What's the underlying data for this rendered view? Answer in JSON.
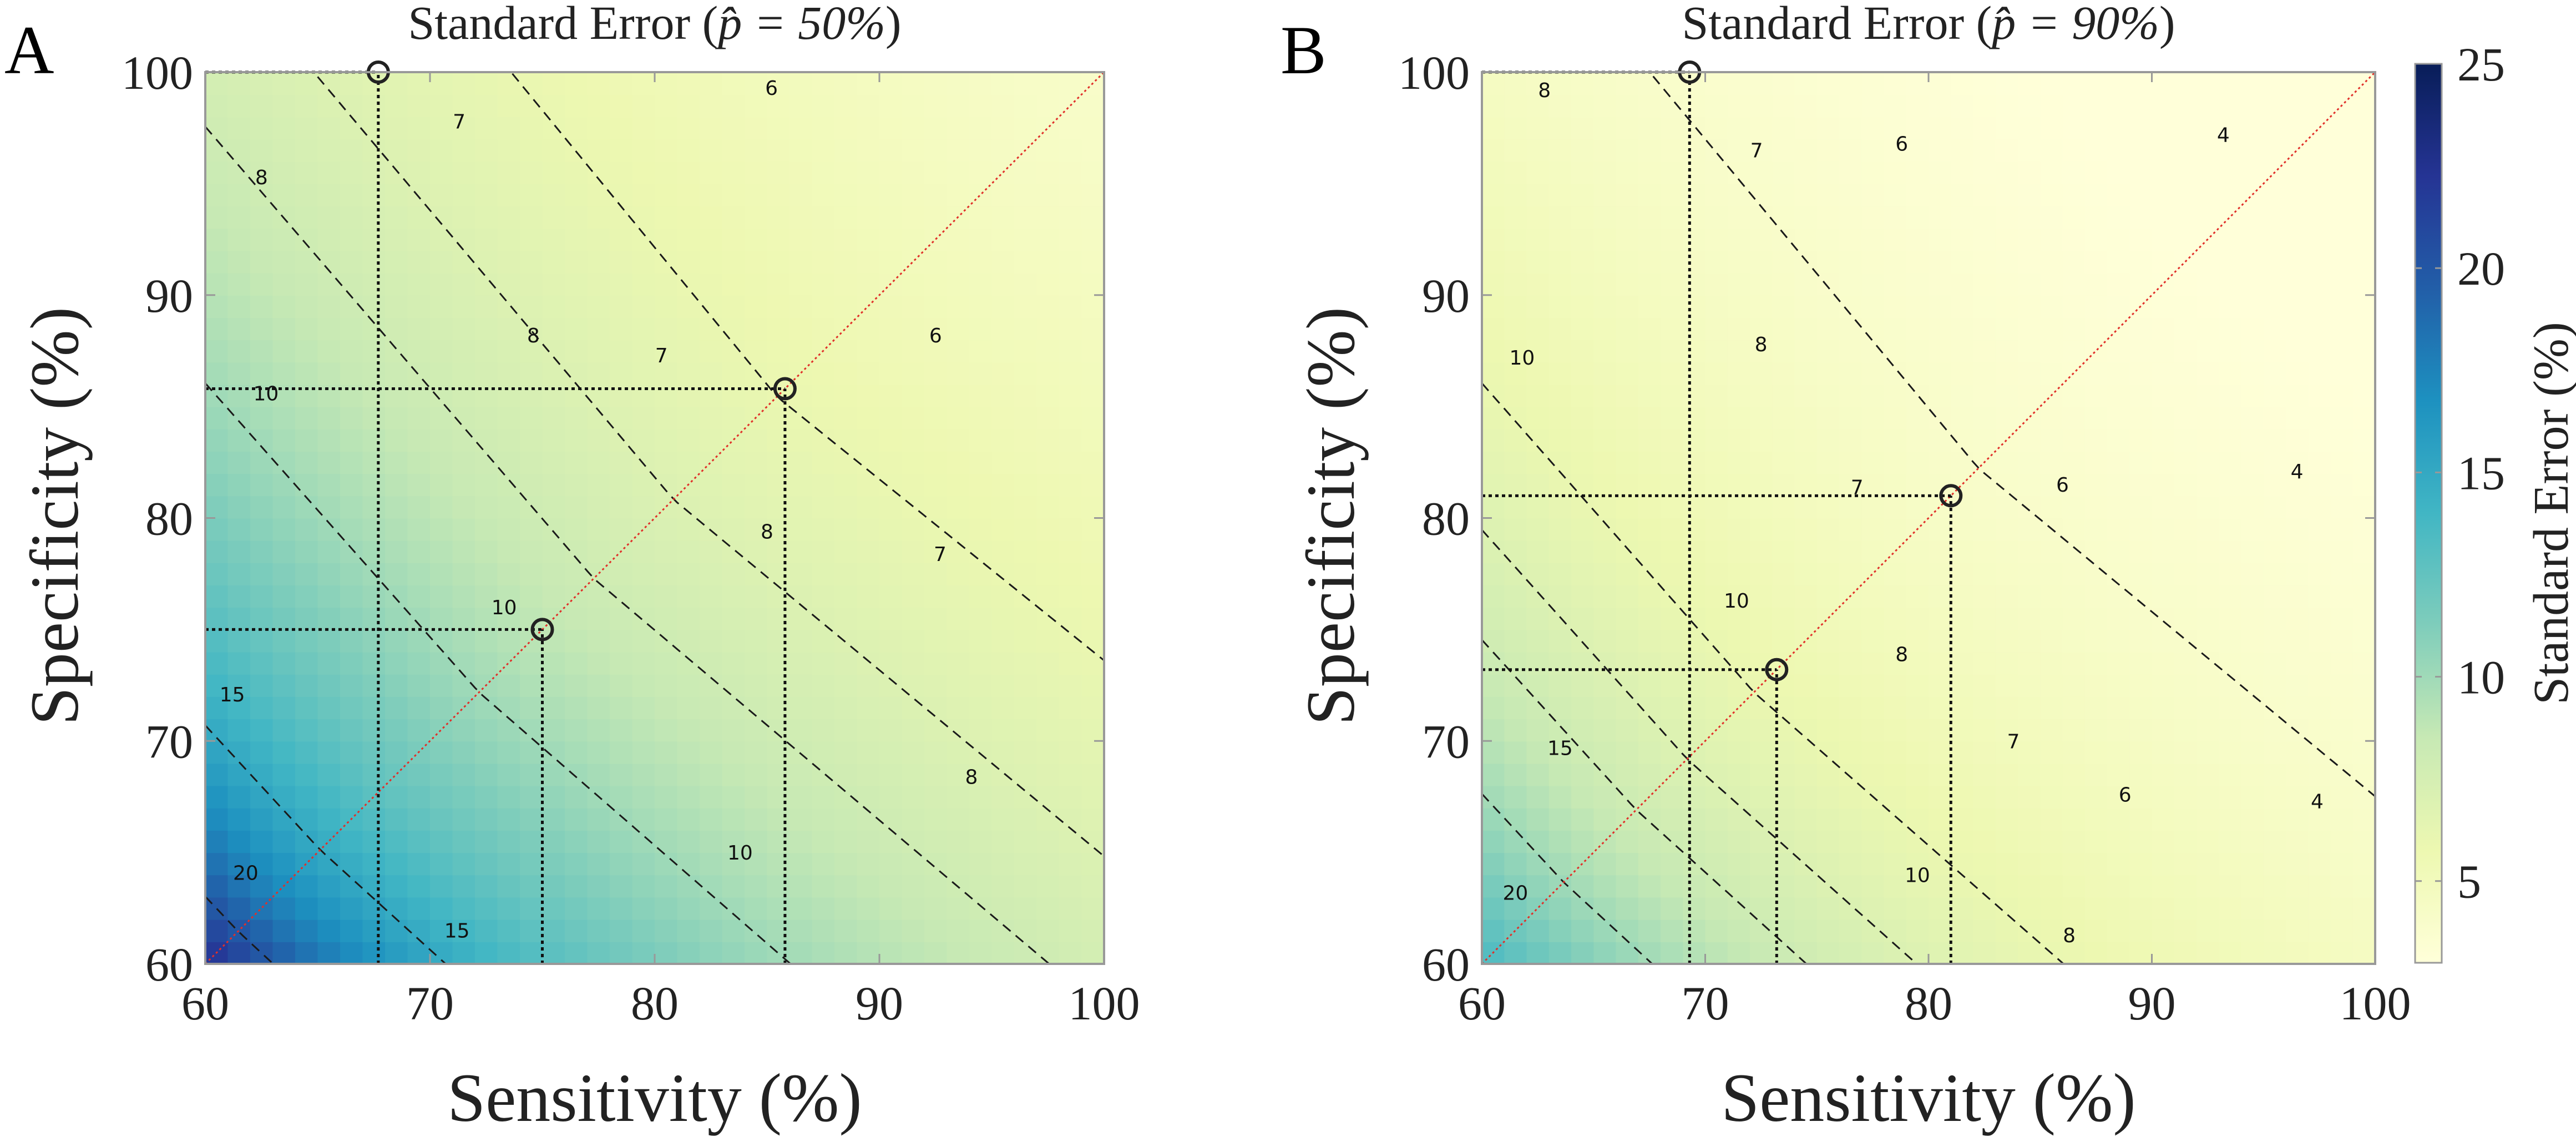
{
  "colors": {
    "colormap": [
      "#ffffd9",
      "#edf8b1",
      "#c7e9b4",
      "#7fcdbb",
      "#41b6c4",
      "#1d91c0",
      "#225ea8",
      "#253494",
      "#081d58"
    ],
    "contour_line": "#1a1a1a",
    "diagonal": "#e0302a",
    "guide_line": "#111111",
    "axes": "#999999"
  },
  "chart_data": [
    {
      "panel": "A",
      "type": "heatmap",
      "title": "Standard Error (p̂ = 50%)",
      "p_hat": 0.5,
      "xlabel": "Sensitivity (%)",
      "ylabel": "Specificity (%)",
      "xlim": [
        60,
        100
      ],
      "ylim": [
        60,
        100
      ],
      "xticks": [
        60,
        70,
        80,
        90,
        100
      ],
      "yticks": [
        60,
        70,
        80,
        90,
        100
      ],
      "contour_levels": [
        6,
        7,
        8,
        10,
        15,
        20
      ],
      "contour_labels": [
        {
          "text": "6",
          "x": 85.2,
          "y": 99.3
        },
        {
          "text": "6",
          "x": 92.5,
          "y": 88.2
        },
        {
          "text": "7",
          "x": 71.3,
          "y": 97.8
        },
        {
          "text": "7",
          "x": 80.3,
          "y": 87.3
        },
        {
          "text": "7",
          "x": 92.7,
          "y": 78.4
        },
        {
          "text": "8",
          "x": 62.5,
          "y": 95.3
        },
        {
          "text": "8",
          "x": 74.6,
          "y": 88.2
        },
        {
          "text": "8",
          "x": 85.0,
          "y": 79.4
        },
        {
          "text": "8",
          "x": 94.1,
          "y": 68.4
        },
        {
          "text": "10",
          "x": 62.7,
          "y": 85.6
        },
        {
          "text": "10",
          "x": 73.3,
          "y": 76.0
        },
        {
          "text": "10",
          "x": 83.8,
          "y": 65.0
        },
        {
          "text": "15",
          "x": 61.2,
          "y": 72.1
        },
        {
          "text": "15",
          "x": 71.2,
          "y": 61.5
        },
        {
          "text": "20",
          "x": 61.8,
          "y": 64.1
        }
      ],
      "markers": [
        {
          "x": 67.7,
          "y": 100
        },
        {
          "x": 75.0,
          "y": 75.0
        },
        {
          "x": 85.8,
          "y": 85.8
        }
      ],
      "guide_x": [
        67.7,
        75.0,
        85.8
      ],
      "guide_y": [
        75.0,
        85.8
      ],
      "guide_y_top": 100
    },
    {
      "panel": "B",
      "type": "heatmap",
      "title": "Standard Error (p̂ = 90%)",
      "p_hat": 0.9,
      "xlabel": "Sensitivity (%)",
      "ylabel": "Specificity (%)",
      "xlim": [
        60,
        100
      ],
      "ylim": [
        60,
        100
      ],
      "xticks": [
        60,
        70,
        80,
        90,
        100
      ],
      "yticks": [
        60,
        70,
        80,
        90,
        100
      ],
      "contour_levels": [
        4,
        6,
        7,
        8,
        10,
        15,
        20
      ],
      "contour_labels": [
        {
          "text": "8",
          "x": 62.8,
          "y": 99.2
        },
        {
          "text": "7",
          "x": 72.3,
          "y": 96.5
        },
        {
          "text": "6",
          "x": 78.8,
          "y": 96.8
        },
        {
          "text": "4",
          "x": 93.2,
          "y": 97.2
        },
        {
          "text": "10",
          "x": 61.8,
          "y": 87.2
        },
        {
          "text": "8",
          "x": 72.5,
          "y": 87.8
        },
        {
          "text": "7",
          "x": 76.8,
          "y": 81.4
        },
        {
          "text": "6",
          "x": 86.0,
          "y": 81.5
        },
        {
          "text": "4",
          "x": 96.5,
          "y": 82.1
        },
        {
          "text": "10",
          "x": 71.4,
          "y": 76.3
        },
        {
          "text": "8",
          "x": 78.8,
          "y": 73.9
        },
        {
          "text": "7",
          "x": 83.8,
          "y": 70.0
        },
        {
          "text": "6",
          "x": 88.8,
          "y": 67.6
        },
        {
          "text": "4",
          "x": 97.4,
          "y": 67.3
        },
        {
          "text": "15",
          "x": 63.5,
          "y": 69.7
        },
        {
          "text": "10",
          "x": 79.5,
          "y": 64.0
        },
        {
          "text": "8",
          "x": 86.3,
          "y": 61.3
        },
        {
          "text": "20",
          "x": 61.5,
          "y": 63.2
        }
      ],
      "markers": [
        {
          "x": 69.3,
          "y": 100
        },
        {
          "x": 73.2,
          "y": 73.2
        },
        {
          "x": 81.0,
          "y": 81.0
        }
      ],
      "guide_x": [
        69.3,
        73.2,
        81.0
      ],
      "guide_y": [
        73.2,
        81.0
      ],
      "guide_y_top": 100
    }
  ],
  "colorbar": {
    "label": "Standard Error (%)",
    "min": 3,
    "max": 25,
    "ticks": [
      5,
      10,
      15,
      20,
      25
    ]
  },
  "panel_letters": {
    "a": "A",
    "b": "B"
  },
  "panel_a": {
    "title_prefix": "Standard Error (",
    "title_math": "p̂ = 50%",
    "title_suffix": ")",
    "xlabel": "Sensitivity (%)",
    "ylabel": "Specificity (%)"
  },
  "panel_b": {
    "title_prefix": "Standard Error (",
    "title_math": "p̂ = 90%",
    "title_suffix": ")",
    "xlabel": "Sensitivity (%)",
    "ylabel": "Specificity (%)"
  }
}
